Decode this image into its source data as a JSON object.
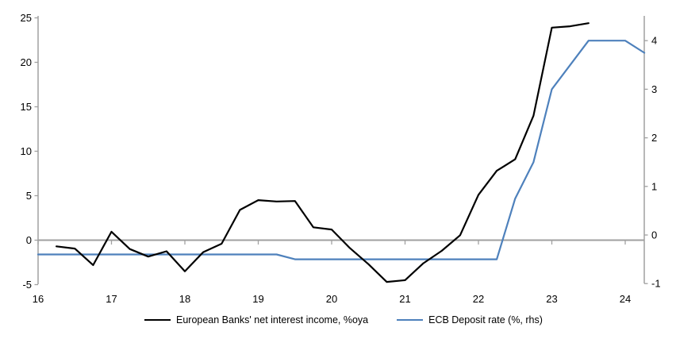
{
  "chart_data": {
    "type": "line",
    "title": "",
    "x_axis": {
      "ticks": [
        16,
        17,
        18,
        19,
        20,
        21,
        22,
        23,
        24
      ],
      "labels": [
        "16",
        "17",
        "18",
        "19",
        "20",
        "21",
        "22",
        "23",
        "24"
      ],
      "range": [
        16,
        24.26
      ]
    },
    "left_axis": {
      "ticks": [
        -5,
        0,
        5,
        10,
        15,
        20,
        25
      ],
      "range": [
        -5,
        25
      ]
    },
    "right_axis": {
      "ticks": [
        -1,
        0,
        1,
        2,
        3,
        4
      ],
      "range": [
        -1,
        4.5
      ]
    },
    "zero_gridline": true,
    "grid": "off",
    "legend_position": "bottom",
    "series": [
      {
        "name": "European Banks' net interest income, %oya",
        "axis": "left",
        "color": "#000000",
        "points": [
          [
            16.25,
            -0.7
          ],
          [
            16.5,
            -0.95
          ],
          [
            16.75,
            -2.8
          ],
          [
            17.0,
            0.95
          ],
          [
            17.25,
            -1.0
          ],
          [
            17.5,
            -1.85
          ],
          [
            17.75,
            -1.25
          ],
          [
            18.0,
            -3.5
          ],
          [
            18.25,
            -1.35
          ],
          [
            18.5,
            -0.4
          ],
          [
            18.75,
            3.4
          ],
          [
            19.0,
            4.5
          ],
          [
            19.25,
            4.35
          ],
          [
            19.5,
            4.4
          ],
          [
            19.75,
            1.45
          ],
          [
            20.0,
            1.2
          ],
          [
            20.25,
            -0.9
          ],
          [
            20.5,
            -2.7
          ],
          [
            20.75,
            -4.7
          ],
          [
            21.0,
            -4.5
          ],
          [
            21.25,
            -2.6
          ],
          [
            21.5,
            -1.2
          ],
          [
            21.75,
            0.55
          ],
          [
            22.0,
            5.1
          ],
          [
            22.25,
            7.8
          ],
          [
            22.5,
            9.1
          ],
          [
            22.75,
            14.0
          ],
          [
            23.0,
            23.9
          ],
          [
            23.25,
            24.05
          ],
          [
            23.5,
            24.4
          ]
        ]
      },
      {
        "name": "ECB Deposit rate (%, rhs)",
        "axis": "right",
        "color": "#4e81bc",
        "points": [
          [
            16.0,
            -0.4
          ],
          [
            19.25,
            -0.4
          ],
          [
            19.5,
            -0.5
          ],
          [
            22.25,
            -0.5
          ],
          [
            22.5,
            0.75
          ],
          [
            22.75,
            1.5
          ],
          [
            23.0,
            3.0
          ],
          [
            23.5,
            4.0
          ],
          [
            24.0,
            4.0
          ],
          [
            24.26,
            3.75
          ]
        ]
      }
    ]
  },
  "colors": {
    "axis": "#a0a0a0",
    "text": "#000000",
    "background": "#ffffff"
  }
}
